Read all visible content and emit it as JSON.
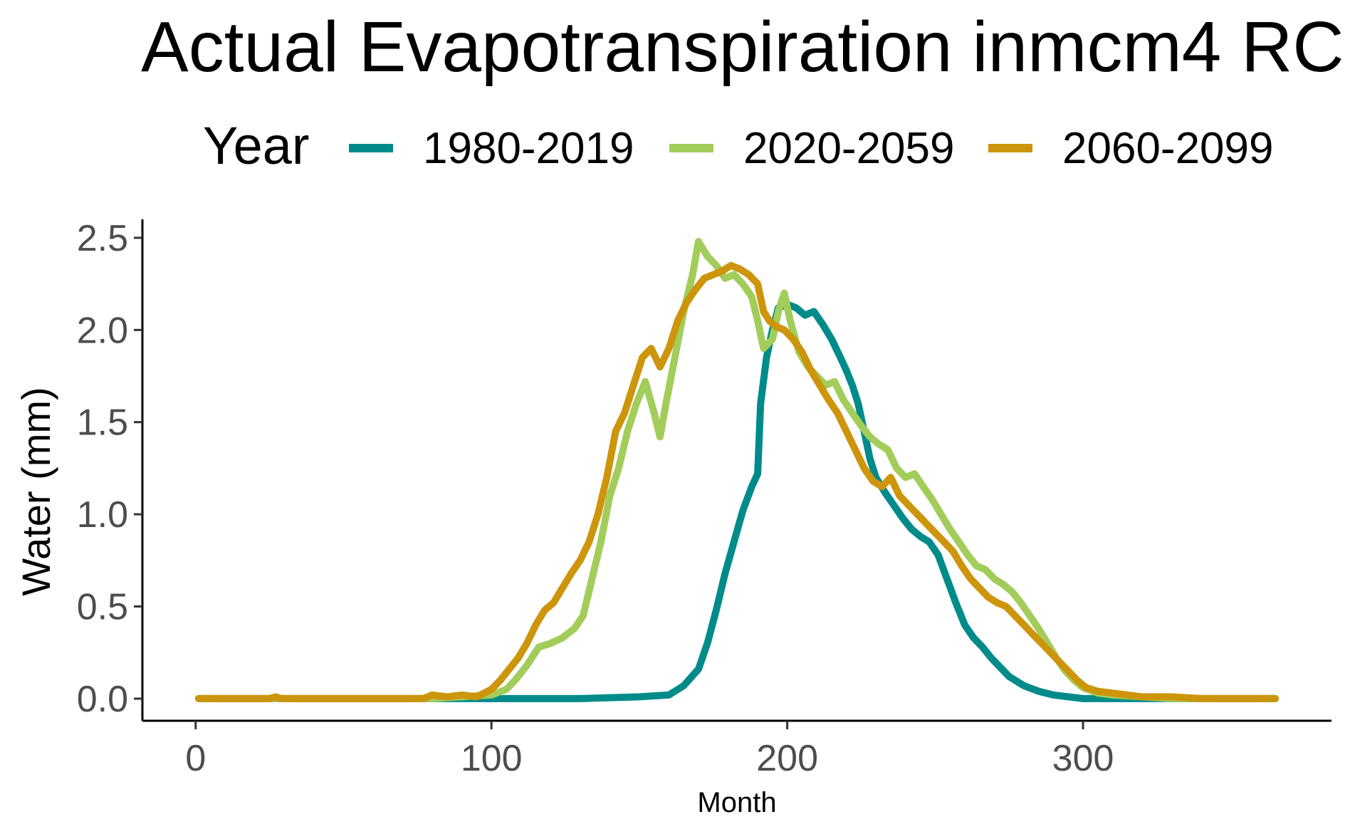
{
  "chart_data": {
    "type": "line",
    "title": "Actual Evapotranspiration inmcm4 RC",
    "xlabel": "Month",
    "ylabel": "Water (mm)",
    "xlim": [
      -18,
      384
    ],
    "ylim": [
      -0.12,
      2.6
    ],
    "x_ticks": [
      0,
      100,
      200,
      300
    ],
    "y_ticks": [
      0.0,
      0.5,
      1.0,
      1.5,
      2.0,
      2.5
    ],
    "x_tick_labels": [
      "0",
      "100",
      "200",
      "300"
    ],
    "y_tick_labels": [
      "0.0",
      "0.5",
      "1.0",
      "1.5",
      "2.0",
      "2.5"
    ],
    "grid": false,
    "legend": {
      "title": "Year",
      "position": "top"
    },
    "series": [
      {
        "name": "1980-2019",
        "color": "#008B8B",
        "points": [
          [
            1,
            0
          ],
          [
            100,
            0
          ],
          [
            110,
            0
          ],
          [
            130,
            0
          ],
          [
            150,
            0.01
          ],
          [
            160,
            0.02
          ],
          [
            165,
            0.07
          ],
          [
            170,
            0.16
          ],
          [
            173,
            0.3
          ],
          [
            176,
            0.48
          ],
          [
            179,
            0.68
          ],
          [
            182,
            0.85
          ],
          [
            185,
            1.02
          ],
          [
            188,
            1.15
          ],
          [
            190,
            1.22
          ],
          [
            191,
            1.6
          ],
          [
            193,
            1.85
          ],
          [
            195,
            2.0
          ],
          [
            197,
            2.12
          ],
          [
            200,
            2.14
          ],
          [
            203,
            2.12
          ],
          [
            206,
            2.08
          ],
          [
            209,
            2.1
          ],
          [
            212,
            2.03
          ],
          [
            215,
            1.95
          ],
          [
            218,
            1.85
          ],
          [
            220,
            1.78
          ],
          [
            222,
            1.7
          ],
          [
            224,
            1.6
          ],
          [
            226,
            1.45
          ],
          [
            228,
            1.3
          ],
          [
            230,
            1.2
          ],
          [
            233,
            1.12
          ],
          [
            236,
            1.05
          ],
          [
            239,
            0.98
          ],
          [
            242,
            0.92
          ],
          [
            245,
            0.88
          ],
          [
            248,
            0.85
          ],
          [
            251,
            0.78
          ],
          [
            254,
            0.65
          ],
          [
            257,
            0.52
          ],
          [
            260,
            0.4
          ],
          [
            263,
            0.33
          ],
          [
            266,
            0.28
          ],
          [
            269,
            0.22
          ],
          [
            272,
            0.17
          ],
          [
            275,
            0.12
          ],
          [
            280,
            0.07
          ],
          [
            285,
            0.04
          ],
          [
            290,
            0.02
          ],
          [
            300,
            0
          ],
          [
            340,
            0
          ],
          [
            365,
            0
          ]
        ]
      },
      {
        "name": "2020-2059",
        "color": "#A2CD5A",
        "points": [
          [
            1,
            0
          ],
          [
            80,
            0
          ],
          [
            90,
            0.01
          ],
          [
            100,
            0.02
          ],
          [
            105,
            0.05
          ],
          [
            108,
            0.1
          ],
          [
            112,
            0.18
          ],
          [
            116,
            0.28
          ],
          [
            120,
            0.3
          ],
          [
            124,
            0.33
          ],
          [
            128,
            0.38
          ],
          [
            131,
            0.45
          ],
          [
            134,
            0.65
          ],
          [
            137,
            0.85
          ],
          [
            140,
            1.1
          ],
          [
            143,
            1.25
          ],
          [
            146,
            1.45
          ],
          [
            149,
            1.6
          ],
          [
            152,
            1.72
          ],
          [
            155,
            1.55
          ],
          [
            157,
            1.42
          ],
          [
            159,
            1.6
          ],
          [
            162,
            1.85
          ],
          [
            165,
            2.1
          ],
          [
            168,
            2.3
          ],
          [
            170,
            2.48
          ],
          [
            173,
            2.4
          ],
          [
            176,
            2.35
          ],
          [
            179,
            2.28
          ],
          [
            182,
            2.3
          ],
          [
            185,
            2.25
          ],
          [
            188,
            2.18
          ],
          [
            190,
            2.05
          ],
          [
            192,
            1.9
          ],
          [
            195,
            1.95
          ],
          [
            197,
            2.1
          ],
          [
            199,
            2.2
          ],
          [
            201,
            2.05
          ],
          [
            204,
            1.88
          ],
          [
            207,
            1.8
          ],
          [
            210,
            1.75
          ],
          [
            213,
            1.7
          ],
          [
            216,
            1.72
          ],
          [
            219,
            1.62
          ],
          [
            222,
            1.55
          ],
          [
            225,
            1.48
          ],
          [
            228,
            1.42
          ],
          [
            231,
            1.38
          ],
          [
            234,
            1.35
          ],
          [
            237,
            1.25
          ],
          [
            240,
            1.2
          ],
          [
            243,
            1.22
          ],
          [
            246,
            1.15
          ],
          [
            249,
            1.08
          ],
          [
            252,
            1.0
          ],
          [
            255,
            0.92
          ],
          [
            258,
            0.85
          ],
          [
            261,
            0.78
          ],
          [
            264,
            0.72
          ],
          [
            267,
            0.7
          ],
          [
            270,
            0.65
          ],
          [
            273,
            0.62
          ],
          [
            276,
            0.58
          ],
          [
            279,
            0.52
          ],
          [
            282,
            0.45
          ],
          [
            285,
            0.38
          ],
          [
            288,
            0.3
          ],
          [
            291,
            0.22
          ],
          [
            294,
            0.15
          ],
          [
            297,
            0.1
          ],
          [
            300,
            0.06
          ],
          [
            305,
            0.03
          ],
          [
            310,
            0.02
          ],
          [
            320,
            0.01
          ],
          [
            330,
            0
          ],
          [
            365,
            0
          ]
        ]
      },
      {
        "name": "2060-2099",
        "color": "#CD950C",
        "points": [
          [
            1,
            0
          ],
          [
            25,
            0
          ],
          [
            27,
            0.01
          ],
          [
            29,
            0
          ],
          [
            77,
            0
          ],
          [
            80,
            0.02
          ],
          [
            85,
            0.01
          ],
          [
            90,
            0.02
          ],
          [
            95,
            0.01
          ],
          [
            100,
            0.05
          ],
          [
            103,
            0.1
          ],
          [
            106,
            0.16
          ],
          [
            109,
            0.22
          ],
          [
            112,
            0.3
          ],
          [
            115,
            0.4
          ],
          [
            118,
            0.48
          ],
          [
            121,
            0.52
          ],
          [
            124,
            0.6
          ],
          [
            127,
            0.68
          ],
          [
            130,
            0.75
          ],
          [
            133,
            0.85
          ],
          [
            136,
            1.0
          ],
          [
            139,
            1.2
          ],
          [
            142,
            1.45
          ],
          [
            145,
            1.55
          ],
          [
            148,
            1.7
          ],
          [
            151,
            1.85
          ],
          [
            154,
            1.9
          ],
          [
            157,
            1.8
          ],
          [
            160,
            1.9
          ],
          [
            163,
            2.05
          ],
          [
            166,
            2.15
          ],
          [
            169,
            2.22
          ],
          [
            172,
            2.28
          ],
          [
            175,
            2.3
          ],
          [
            178,
            2.32
          ],
          [
            181,
            2.35
          ],
          [
            184,
            2.33
          ],
          [
            187,
            2.3
          ],
          [
            190,
            2.25
          ],
          [
            192,
            2.1
          ],
          [
            194,
            2.05
          ],
          [
            196,
            2.02
          ],
          [
            199,
            2.0
          ],
          [
            202,
            1.95
          ],
          [
            205,
            1.88
          ],
          [
            208,
            1.78
          ],
          [
            211,
            1.7
          ],
          [
            214,
            1.62
          ],
          [
            217,
            1.55
          ],
          [
            220,
            1.45
          ],
          [
            223,
            1.35
          ],
          [
            226,
            1.25
          ],
          [
            229,
            1.18
          ],
          [
            232,
            1.15
          ],
          [
            235,
            1.2
          ],
          [
            238,
            1.1
          ],
          [
            241,
            1.05
          ],
          [
            244,
            1.0
          ],
          [
            247,
            0.95
          ],
          [
            250,
            0.9
          ],
          [
            253,
            0.85
          ],
          [
            256,
            0.8
          ],
          [
            259,
            0.72
          ],
          [
            262,
            0.65
          ],
          [
            265,
            0.6
          ],
          [
            268,
            0.55
          ],
          [
            271,
            0.52
          ],
          [
            274,
            0.5
          ],
          [
            277,
            0.45
          ],
          [
            280,
            0.4
          ],
          [
            283,
            0.35
          ],
          [
            286,
            0.3
          ],
          [
            289,
            0.25
          ],
          [
            292,
            0.2
          ],
          [
            295,
            0.15
          ],
          [
            298,
            0.1
          ],
          [
            301,
            0.06
          ],
          [
            305,
            0.04
          ],
          [
            310,
            0.03
          ],
          [
            320,
            0.01
          ],
          [
            330,
            0.01
          ],
          [
            340,
            0
          ],
          [
            365,
            0
          ]
        ]
      }
    ]
  }
}
